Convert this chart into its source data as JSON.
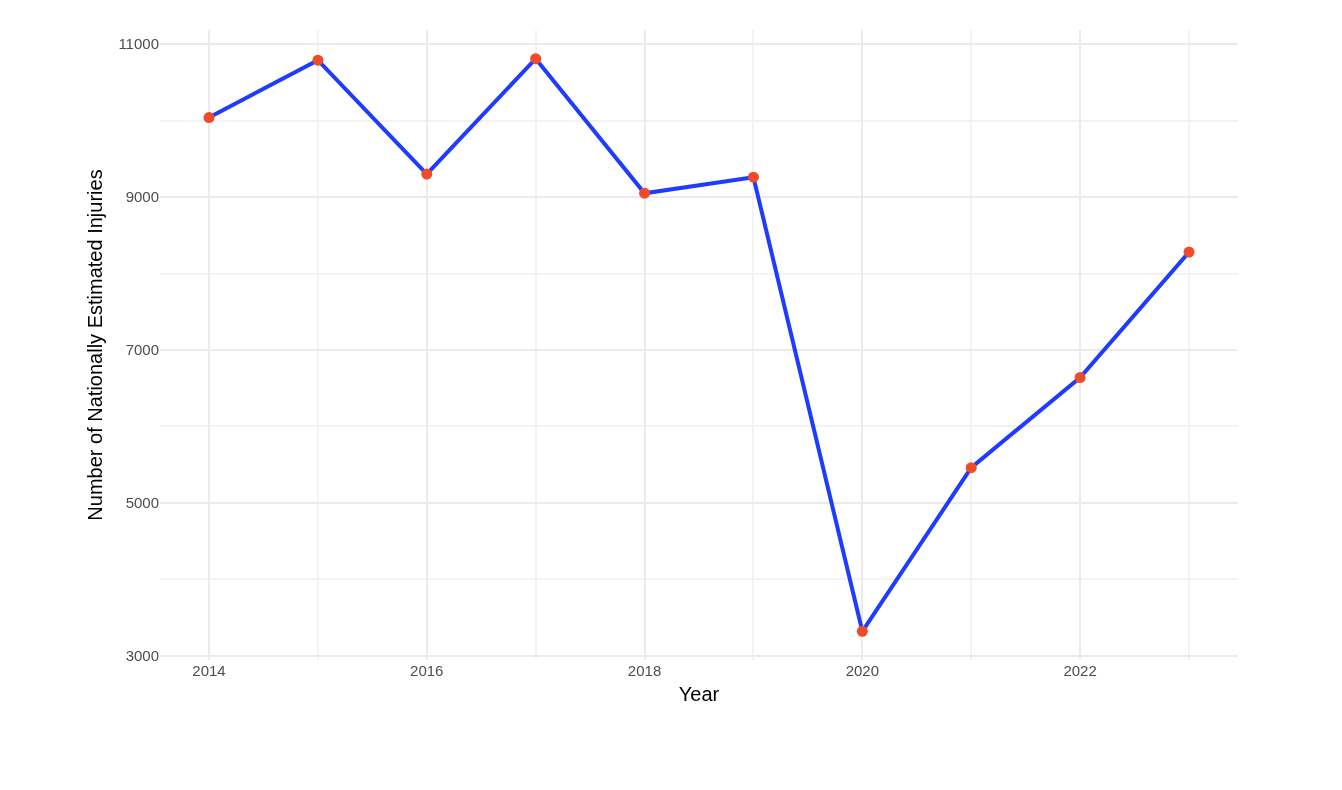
{
  "chart_data": {
    "type": "line",
    "xlabel": "Year",
    "ylabel": "Number of Nationally Estimated Injuries",
    "x": [
      2014,
      2015,
      2016,
      2017,
      2018,
      2019,
      2020,
      2021,
      2022,
      2023
    ],
    "series": [
      {
        "color": "#1f3bff",
        "colors": [
          "#ee4b2b",
          "#ee4b2b",
          "#ee4b2b",
          "#ee4b2b",
          "#ee4b2b",
          "#ee4b2b",
          "#ee4b2b",
          "#ee4b2b",
          "#ee4b2b",
          "#ee4b2b"
        ],
        "values": [
          10040,
          10790,
          9300,
          10810,
          9050,
          9260,
          3320,
          5460,
          6640,
          8280
        ]
      }
    ],
    "xlim": [
      2013.55,
      2023.45
    ],
    "xticks": [
      2014,
      2016,
      2018,
      2020,
      2022
    ],
    "ylim": [
      2945,
      11185
    ],
    "yticks": [
      3000,
      5000,
      7000,
      9000,
      11000
    ],
    "grid": true,
    "marker": "circle",
    "line_style": "solid"
  }
}
